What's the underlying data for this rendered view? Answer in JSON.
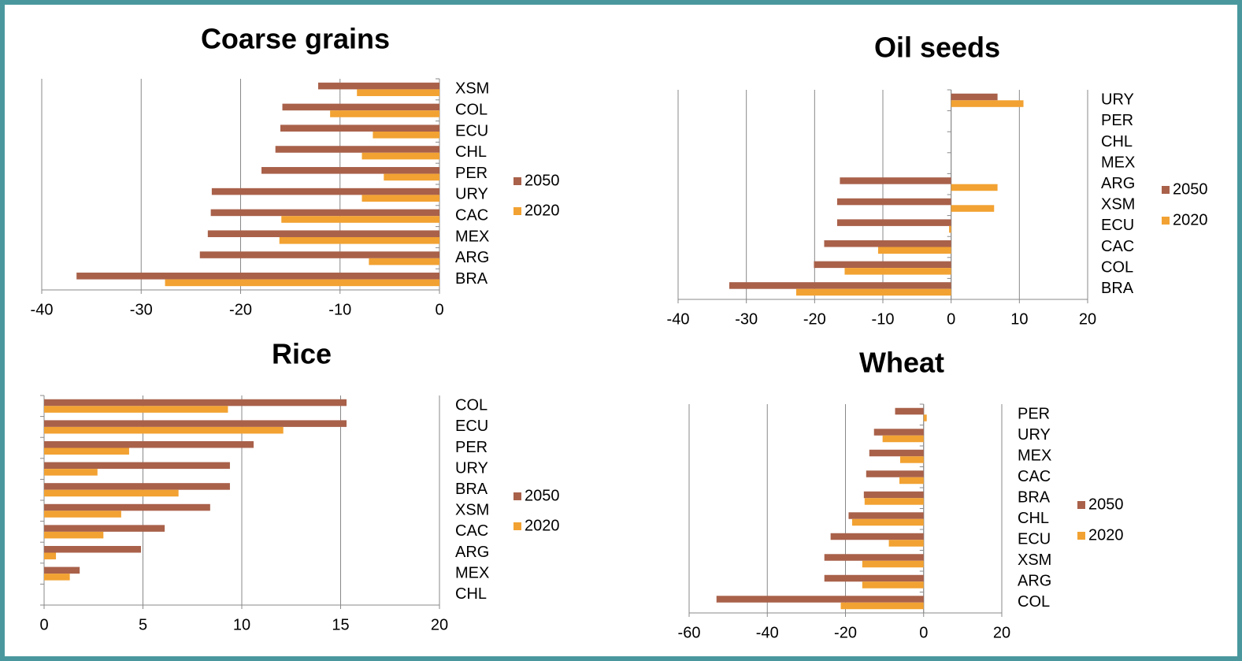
{
  "chart_data": [
    {
      "type": "bar",
      "orientation": "horizontal",
      "title": "Coarse grains",
      "categories": [
        "XSM",
        "COL",
        "ECU",
        "CHL",
        "PER",
        "URY",
        "CAC",
        "MEX",
        "ARG",
        "BRA"
      ],
      "series": [
        {
          "name": "2050",
          "color": "#a9614a",
          "values": [
            -12.2,
            -15.8,
            -16,
            -16.5,
            -17.9,
            -22.9,
            -23,
            -23.3,
            -24.1,
            -36.5
          ]
        },
        {
          "name": "2020",
          "color": "#f2a232",
          "values": [
            -8.3,
            -11,
            -6.7,
            -7.8,
            -5.6,
            -7.8,
            -15.9,
            -16.1,
            -7.1,
            -27.6
          ]
        }
      ],
      "xlim": [
        -40,
        0
      ],
      "xticks": [
        -40,
        -30,
        -20,
        -10,
        0
      ],
      "grid": true,
      "legend": "right"
    },
    {
      "type": "bar",
      "orientation": "horizontal",
      "title": "Oil seeds",
      "categories": [
        "URY",
        "PER",
        "CHL",
        "MEX",
        "ARG",
        "XSM",
        "ECU",
        "CAC",
        "COL",
        "BRA"
      ],
      "series": [
        {
          "name": "2050",
          "color": "#a9614a",
          "values": [
            6.8,
            0,
            0,
            0,
            -16.3,
            -16.7,
            -16.7,
            -18.6,
            -20.1,
            -32.5
          ]
        },
        {
          "name": "2020",
          "color": "#f2a232",
          "values": [
            10.6,
            0,
            0,
            0,
            6.8,
            6.3,
            -0.3,
            -10.7,
            -15.6,
            -22.7
          ]
        }
      ],
      "xlim": [
        -40,
        20
      ],
      "xticks": [
        -40,
        -30,
        -20,
        -10,
        0,
        10,
        20
      ],
      "grid": true,
      "legend": "right"
    },
    {
      "type": "bar",
      "orientation": "horizontal",
      "title": "Rice",
      "categories": [
        "COL",
        "ECU",
        "PER",
        "URY",
        "BRA",
        "XSM",
        "CAC",
        "ARG",
        "MEX",
        "CHL"
      ],
      "series": [
        {
          "name": "2050",
          "color": "#a9614a",
          "values": [
            15.3,
            15.3,
            10.6,
            9.4,
            9.4,
            8.4,
            6.1,
            4.9,
            1.8,
            0
          ]
        },
        {
          "name": "2020",
          "color": "#f2a232",
          "values": [
            9.3,
            12.1,
            4.3,
            2.7,
            6.8,
            3.9,
            3,
            0.6,
            1.3,
            0
          ]
        }
      ],
      "xlim": [
        0,
        20
      ],
      "xticks": [
        0,
        5,
        10,
        15,
        20
      ],
      "grid": true,
      "legend": "right"
    },
    {
      "type": "bar",
      "orientation": "horizontal",
      "title": "Wheat",
      "categories": [
        "PER",
        "URY",
        "MEX",
        "CAC",
        "BRA",
        "CHL",
        "ECU",
        "XSM",
        "ARG",
        "COL"
      ],
      "series": [
        {
          "name": "2050",
          "color": "#a9614a",
          "values": [
            -7.3,
            -12.7,
            -13.9,
            -14.7,
            -15.3,
            -19.2,
            -23.8,
            -25.4,
            -25.4,
            -53
          ]
        },
        {
          "name": "2020",
          "color": "#f2a232",
          "values": [
            0.8,
            -10.5,
            -6,
            -6.2,
            -15.1,
            -18.3,
            -8.9,
            -15.7,
            -15.7,
            -21.2
          ]
        }
      ],
      "xlim": [
        -60,
        20
      ],
      "xticks": [
        -60,
        -40,
        -20,
        0,
        20
      ],
      "grid": true,
      "legend": "right"
    }
  ]
}
